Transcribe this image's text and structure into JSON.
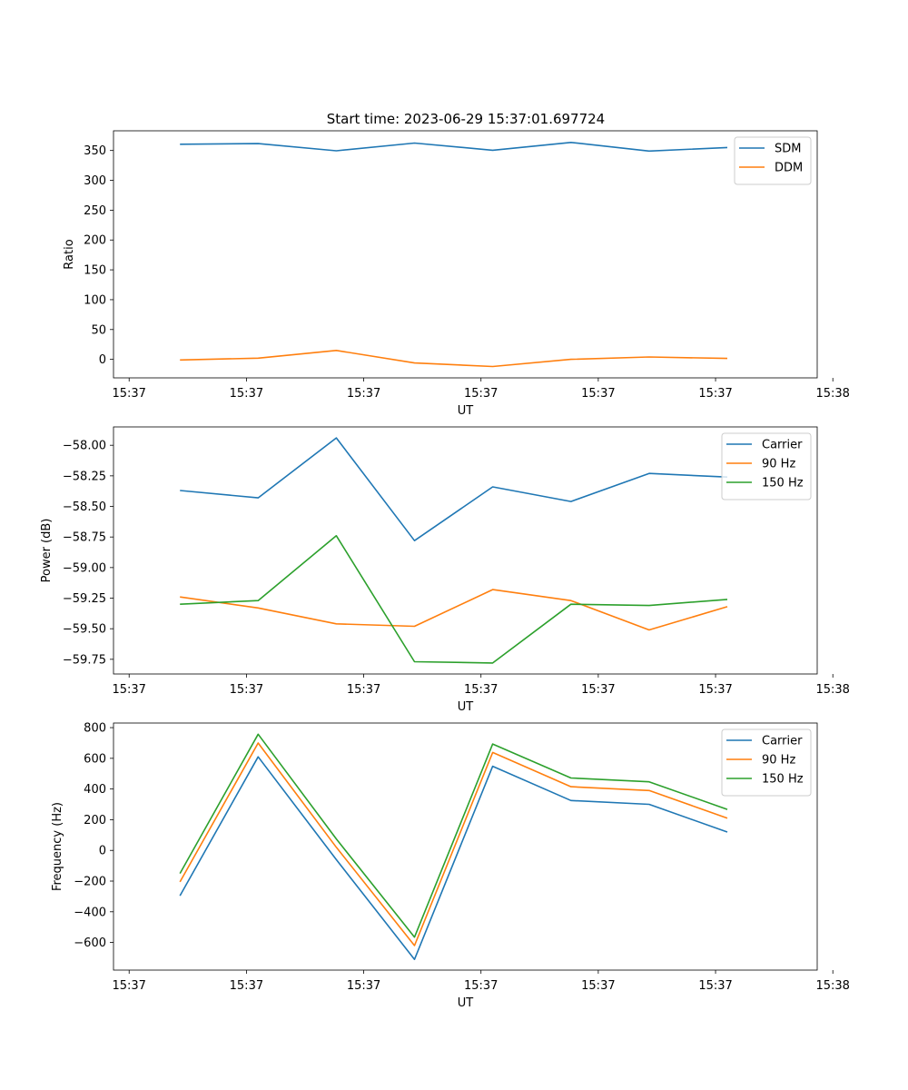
{
  "figure": {
    "title": "Start time: 2023-06-29 15:37:01.697724"
  },
  "colors": {
    "blue": "#1f77b4",
    "orange": "#ff7f0e",
    "green": "#2ca02c"
  },
  "chart_data": [
    {
      "type": "line",
      "title": "Start time: 2023-06-29 15:37:01.697724",
      "xlabel": "UT",
      "ylabel": "Ratio",
      "x": [
        1,
        2,
        3,
        4,
        5,
        6,
        7,
        8
      ],
      "xlim": [
        0.15,
        9.15
      ],
      "x_ticks": [
        0.35,
        1.85,
        3.35,
        4.85,
        6.35,
        7.85,
        9.35
      ],
      "x_tick_labels": [
        "15:37",
        "15:37",
        "15:37",
        "15:37",
        "15:37",
        "15:37",
        "15:38"
      ],
      "ylim": [
        -31,
        383
      ],
      "y_ticks": [
        0,
        50,
        100,
        150,
        200,
        250,
        300,
        350
      ],
      "y_tick_labels": [
        "0",
        "50",
        "100",
        "150",
        "200",
        "250",
        "300",
        "350"
      ],
      "legend": "top-right",
      "grid": false,
      "series": [
        {
          "name": "SDM",
          "color": "#1f77b4",
          "values": [
            360.5,
            361.5,
            349.5,
            362.5,
            350.5,
            363.5,
            349,
            355
          ]
        },
        {
          "name": "DDM",
          "color": "#ff7f0e",
          "values": [
            -1,
            2,
            15,
            -6,
            -12,
            0,
            4,
            1.5
          ]
        }
      ]
    },
    {
      "type": "line",
      "title": "",
      "xlabel": "UT",
      "ylabel": "Power (dB)",
      "x": [
        1,
        2,
        3,
        4,
        5,
        6,
        7,
        8
      ],
      "xlim": [
        0.15,
        9.15
      ],
      "x_ticks": [
        0.35,
        1.85,
        3.35,
        4.85,
        6.35,
        7.85,
        9.35
      ],
      "x_tick_labels": [
        "15:37",
        "15:37",
        "15:37",
        "15:37",
        "15:37",
        "15:37",
        "15:38"
      ],
      "ylim": [
        -59.87,
        -57.85
      ],
      "y_ticks": [
        -58.0,
        -58.25,
        -58.5,
        -58.75,
        -59.0,
        -59.25,
        -59.5,
        -59.75
      ],
      "y_tick_labels": [
        "−58.00",
        "−58.25",
        "−58.50",
        "−58.75",
        "−59.00",
        "−59.25",
        "−59.50",
        "−59.75"
      ],
      "legend": "top-right",
      "grid": false,
      "series": [
        {
          "name": "Carrier",
          "color": "#1f77b4",
          "values": [
            -58.37,
            -58.43,
            -57.94,
            -58.78,
            -58.34,
            -58.46,
            -58.23,
            -58.26
          ]
        },
        {
          "name": "90 Hz",
          "color": "#ff7f0e",
          "values": [
            -59.24,
            -59.33,
            -59.46,
            -59.48,
            -59.18,
            -59.27,
            -59.51,
            -59.32
          ]
        },
        {
          "name": "150 Hz",
          "color": "#2ca02c",
          "values": [
            -59.3,
            -59.27,
            -58.74,
            -59.77,
            -59.78,
            -59.3,
            -59.31,
            -59.26
          ]
        }
      ]
    },
    {
      "type": "line",
      "title": "",
      "xlabel": "UT",
      "ylabel": "Frequency (Hz)",
      "x": [
        1,
        2,
        3,
        4,
        5,
        6,
        7,
        8
      ],
      "xlim": [
        0.15,
        9.15
      ],
      "x_ticks": [
        0.35,
        1.85,
        3.35,
        4.85,
        6.35,
        7.85,
        9.35
      ],
      "x_tick_labels": [
        "15:37",
        "15:37",
        "15:37",
        "15:37",
        "15:37",
        "15:37",
        "15:38"
      ],
      "ylim": [
        -780,
        830
      ],
      "y_ticks": [
        -600,
        -400,
        -200,
        0,
        200,
        400,
        600,
        800
      ],
      "y_tick_labels": [
        "−600",
        "−400",
        "−200",
        "0",
        "200",
        "400",
        "600",
        "800"
      ],
      "legend": "top-right",
      "grid": false,
      "series": [
        {
          "name": "Carrier",
          "color": "#1f77b4",
          "values": [
            -295,
            610,
            -60,
            -710,
            548,
            325,
            300,
            120
          ]
        },
        {
          "name": "90 Hz",
          "color": "#ff7f0e",
          "values": [
            -205,
            700,
            20,
            -620,
            638,
            415,
            390,
            210
          ]
        },
        {
          "name": "150 Hz",
          "color": "#2ca02c",
          "values": [
            -150,
            757,
            75,
            -565,
            693,
            472,
            447,
            267
          ]
        }
      ]
    }
  ]
}
